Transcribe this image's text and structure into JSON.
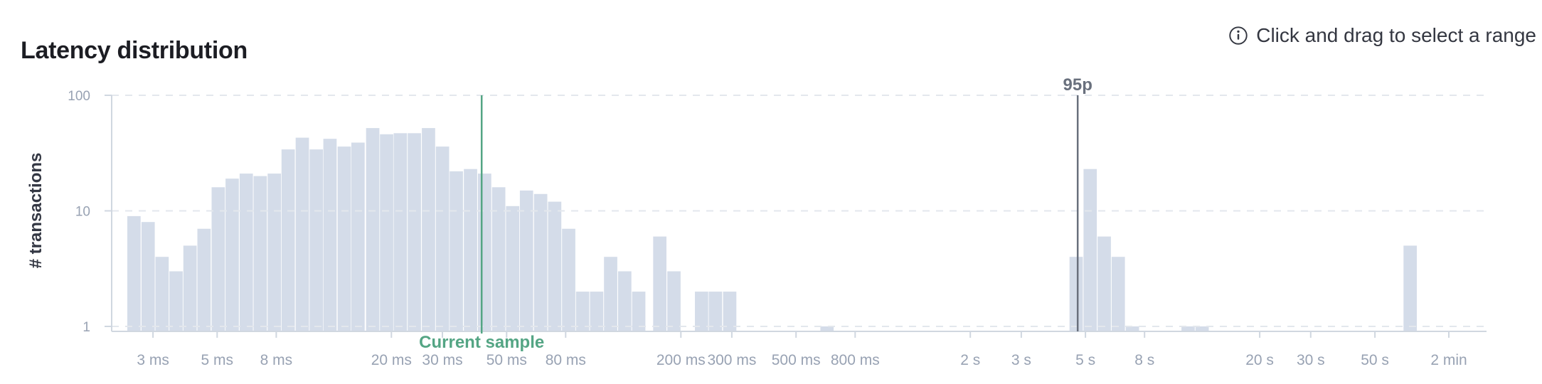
{
  "header": {
    "title": "Latency distribution",
    "hint": "Click and drag to select a range"
  },
  "chart_data": {
    "type": "histogram",
    "title": "Latency distribution",
    "ylabel": "# transactions",
    "x_scale": "log",
    "y_scale": "log",
    "x_domain_ms": [
      2.16,
      121500
    ],
    "y_domain": [
      1,
      100
    ],
    "grid": true,
    "legend": false,
    "bucket_ratio": 1.118,
    "y_ticks": [
      {
        "label": "100",
        "value": 100
      },
      {
        "label": "10",
        "value": 10
      },
      {
        "label": "1",
        "value": 1
      }
    ],
    "x_ticks": [
      {
        "label": "3 ms",
        "ms": 3
      },
      {
        "label": "5 ms",
        "ms": 5
      },
      {
        "label": "8 ms",
        "ms": 8
      },
      {
        "label": "20 ms",
        "ms": 20
      },
      {
        "label": "30 ms",
        "ms": 30
      },
      {
        "label": "50 ms",
        "ms": 50
      },
      {
        "label": "80 ms",
        "ms": 80
      },
      {
        "label": "200 ms",
        "ms": 200
      },
      {
        "label": "300 ms",
        "ms": 300
      },
      {
        "label": "500 ms",
        "ms": 500
      },
      {
        "label": "800 ms",
        "ms": 800
      },
      {
        "label": "2 s",
        "ms": 2000
      },
      {
        "label": "3 s",
        "ms": 3000
      },
      {
        "label": "5 s",
        "ms": 5000
      },
      {
        "label": "8 s",
        "ms": 8000
      },
      {
        "label": "20 s",
        "ms": 20000
      },
      {
        "label": "30 s",
        "ms": 30000
      },
      {
        "label": "50 s",
        "ms": 50000
      },
      {
        "label": "2 min",
        "ms": 90000
      }
    ],
    "bars": [
      {
        "t0_ms": 2.44,
        "count": 9
      },
      {
        "t0_ms": 2.73,
        "count": 8
      },
      {
        "t0_ms": 3.05,
        "count": 4
      },
      {
        "t0_ms": 3.41,
        "count": 3
      },
      {
        "t0_ms": 3.81,
        "count": 5
      },
      {
        "t0_ms": 4.26,
        "count": 7
      },
      {
        "t0_ms": 4.77,
        "count": 16
      },
      {
        "t0_ms": 5.33,
        "count": 19
      },
      {
        "t0_ms": 5.96,
        "count": 21
      },
      {
        "t0_ms": 6.66,
        "count": 20
      },
      {
        "t0_ms": 7.45,
        "count": 21
      },
      {
        "t0_ms": 8.32,
        "count": 34
      },
      {
        "t0_ms": 9.31,
        "count": 43
      },
      {
        "t0_ms": 10.4,
        "count": 34
      },
      {
        "t0_ms": 11.6,
        "count": 42
      },
      {
        "t0_ms": 13.0,
        "count": 36
      },
      {
        "t0_ms": 14.5,
        "count": 39
      },
      {
        "t0_ms": 16.3,
        "count": 52
      },
      {
        "t0_ms": 18.2,
        "count": 46
      },
      {
        "t0_ms": 20.3,
        "count": 47
      },
      {
        "t0_ms": 22.7,
        "count": 47
      },
      {
        "t0_ms": 25.4,
        "count": 52
      },
      {
        "t0_ms": 28.4,
        "count": 36
      },
      {
        "t0_ms": 31.7,
        "count": 22
      },
      {
        "t0_ms": 35.5,
        "count": 23
      },
      {
        "t0_ms": 39.7,
        "count": 21
      },
      {
        "t0_ms": 44.4,
        "count": 16
      },
      {
        "t0_ms": 49.6,
        "count": 11
      },
      {
        "t0_ms": 55.4,
        "count": 15
      },
      {
        "t0_ms": 62.0,
        "count": 14
      },
      {
        "t0_ms": 69.3,
        "count": 12
      },
      {
        "t0_ms": 77.5,
        "count": 7
      },
      {
        "t0_ms": 86.6,
        "count": 2
      },
      {
        "t0_ms": 96.8,
        "count": 2
      },
      {
        "t0_ms": 108.2,
        "count": 4
      },
      {
        "t0_ms": 121.0,
        "count": 3
      },
      {
        "t0_ms": 135.3,
        "count": 2
      },
      {
        "t0_ms": 160,
        "count": 6
      },
      {
        "t0_ms": 179,
        "count": 3
      },
      {
        "t0_ms": 223,
        "count": 2
      },
      {
        "t0_ms": 249,
        "count": 2
      },
      {
        "t0_ms": 279,
        "count": 2
      },
      {
        "t0_ms": 605,
        "count": 1
      },
      {
        "t0_ms": 4390,
        "count": 4
      },
      {
        "t0_ms": 4910,
        "count": 23
      },
      {
        "t0_ms": 5490,
        "count": 6
      },
      {
        "t0_ms": 6140,
        "count": 4
      },
      {
        "t0_ms": 6870,
        "count": 1
      },
      {
        "t0_ms": 10700,
        "count": 1
      },
      {
        "t0_ms": 11960,
        "count": 1
      },
      {
        "t0_ms": 62600,
        "count": 5
      }
    ],
    "markers": [
      {
        "id": "p95",
        "label": "95p",
        "value_ms": 4700,
        "color": "#69707d",
        "label_position": "top"
      },
      {
        "id": "current-sample",
        "label": "Current sample",
        "value_ms": 41,
        "color": "#54a584",
        "label_position": "bottom"
      }
    ],
    "colors": {
      "bar": "#d4dce9",
      "grid": "#e3e7ed",
      "axis": "#d0d7e0",
      "tick_text": "#98a2b3",
      "axis_title": "#333743"
    }
  }
}
